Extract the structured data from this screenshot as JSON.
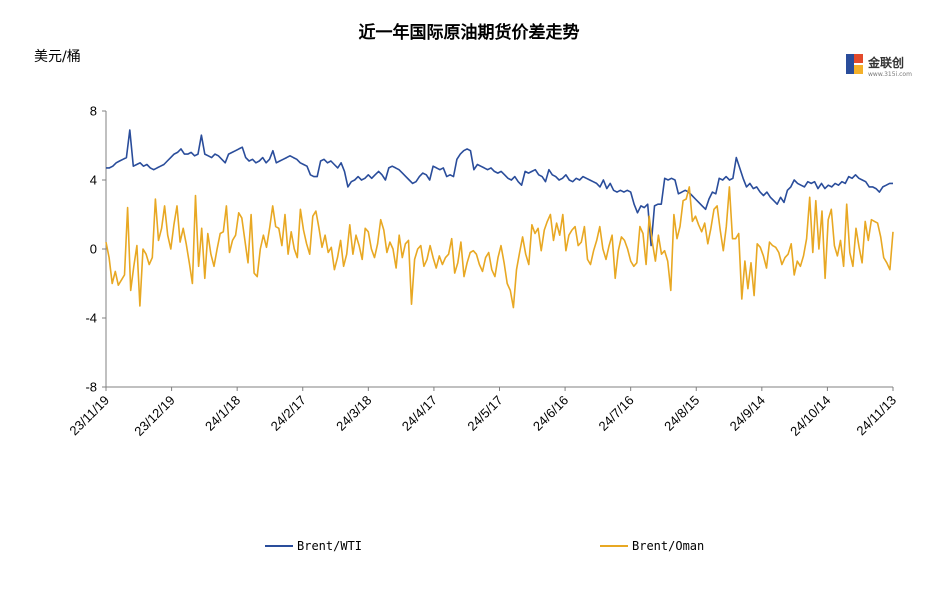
{
  "chart_data": {
    "type": "line",
    "title": "近一年国际原油期货价差走势",
    "unit_label": "美元/桶",
    "ylim": [
      -8,
      8
    ],
    "yticks": [
      8,
      4,
      0,
      -4,
      -8
    ],
    "xtick_labels": [
      "23/11/19",
      "23/12/19",
      "24/1/18",
      "24/2/17",
      "24/3/18",
      "24/4/17",
      "24/5/17",
      "24/6/16",
      "24/7/16",
      "24/8/15",
      "24/9/14",
      "24/10/14",
      "24/11/13"
    ],
    "legend_position": "bottom",
    "grid": false,
    "series": [
      {
        "name": "Brent/WTI",
        "color": "#2a4d9b",
        "values": [
          4.7,
          4.7,
          4.8,
          5.0,
          5.1,
          5.2,
          5.3,
          6.9,
          4.8,
          4.9,
          5.0,
          4.8,
          4.9,
          4.7,
          4.6,
          4.7,
          4.8,
          4.9,
          5.1,
          5.3,
          5.5,
          5.6,
          5.8,
          5.5,
          5.5,
          5.6,
          5.4,
          5.5,
          6.6,
          5.5,
          5.4,
          5.3,
          5.5,
          5.4,
          5.2,
          5.0,
          5.5,
          5.6,
          5.7,
          5.8,
          5.9,
          5.3,
          5.1,
          5.2,
          5.0,
          5.1,
          5.3,
          5.0,
          5.2,
          5.7,
          5.0,
          5.1,
          5.2,
          5.3,
          5.4,
          5.3,
          5.2,
          5.0,
          4.9,
          4.8,
          4.3,
          4.2,
          4.2,
          5.1,
          5.2,
          5.0,
          5.1,
          4.9,
          4.7,
          5.0,
          4.5,
          3.6,
          3.9,
          4.0,
          4.2,
          4.0,
          4.1,
          4.3,
          4.1,
          4.3,
          4.5,
          4.3,
          4.0,
          4.7,
          4.8,
          4.7,
          4.6,
          4.4,
          4.2,
          4.0,
          3.8,
          3.9,
          4.2,
          4.4,
          4.3,
          4.0,
          4.8,
          4.7,
          4.6,
          4.7,
          4.2,
          4.3,
          4.2,
          5.2,
          5.5,
          5.7,
          5.8,
          5.7,
          4.6,
          4.9,
          4.8,
          4.7,
          4.6,
          4.7,
          4.5,
          4.4,
          4.5,
          4.3,
          4.1,
          4.0,
          4.2,
          3.9,
          3.7,
          4.5,
          4.4,
          4.5,
          4.6,
          4.3,
          4.2,
          3.9,
          4.6,
          4.3,
          4.2,
          4.0,
          4.1,
          4.3,
          4.0,
          3.9,
          4.1,
          4.0,
          4.2,
          4.1,
          4.0,
          3.9,
          3.8,
          3.6,
          4.0,
          3.5,
          3.8,
          3.4,
          3.3,
          3.4,
          3.3,
          3.4,
          3.3,
          2.6,
          2.1,
          2.5,
          2.4,
          2.6,
          0.2,
          2.5,
          2.6,
          2.6,
          4.1,
          4.0,
          4.1,
          4.0,
          3.2,
          3.3,
          3.4,
          3.3,
          3.1,
          2.9,
          2.7,
          2.5,
          2.3,
          2.9,
          3.3,
          3.2,
          4.1,
          4.0,
          4.2,
          4.0,
          4.1,
          5.3,
          4.7,
          4.1,
          3.6,
          3.8,
          3.5,
          3.6,
          3.3,
          3.1,
          3.3,
          3.0,
          2.8,
          2.6,
          3.0,
          2.7,
          3.4,
          3.6,
          4.0,
          3.8,
          3.7,
          3.6,
          3.9,
          3.8,
          3.9,
          3.5,
          3.8,
          3.5,
          3.7,
          3.6,
          3.8,
          3.7,
          3.9,
          3.8,
          4.2,
          4.1,
          4.3,
          4.1,
          4.0,
          3.9,
          3.6,
          3.6,
          3.5,
          3.3,
          3.6,
          3.7,
          3.8,
          3.8
        ]
      },
      {
        "name": "Brent/Oman",
        "color": "#e8a823",
        "values": [
          0.4,
          -0.5,
          -2.0,
          -1.3,
          -2.1,
          -1.8,
          -1.5,
          2.4,
          -2.4,
          -1.0,
          0.2,
          -3.3,
          0.0,
          -0.3,
          -0.9,
          -0.5,
          2.9,
          0.5,
          1.2,
          2.5,
          0.8,
          0.0,
          1.4,
          2.5,
          0.4,
          1.2,
          0.3,
          -0.8,
          -2.0,
          3.1,
          -1.0,
          1.2,
          -1.7,
          0.9,
          -0.3,
          -1.0,
          0.0,
          0.9,
          1.0,
          2.5,
          -0.2,
          0.5,
          0.8,
          2.1,
          1.8,
          0.5,
          -0.8,
          2.0,
          -1.4,
          -1.6,
          0.0,
          0.8,
          0.1,
          1.2,
          2.5,
          1.3,
          1.2,
          0.2,
          2.0,
          -0.3,
          1.0,
          0.0,
          -0.5,
          2.3,
          1.1,
          0.3,
          -0.3,
          1.9,
          2.2,
          1.2,
          0.1,
          0.8,
          -0.2,
          0.1,
          -1.2,
          -0.5,
          0.5,
          -1.0,
          -0.3,
          1.4,
          -0.3,
          0.8,
          0.2,
          -0.6,
          1.2,
          1.0,
          0.0,
          -0.5,
          0.3,
          1.7,
          1.1,
          -0.2,
          0.4,
          0.0,
          -1.1,
          0.8,
          -0.5,
          0.3,
          0.5,
          -3.2,
          -0.6,
          0.0,
          0.2,
          -1.0,
          -0.6,
          0.2,
          -0.5,
          -1.1,
          -0.4,
          -0.9,
          -0.5,
          -0.3,
          0.6,
          -1.4,
          -0.8,
          0.4,
          -1.6,
          -0.8,
          -0.2,
          -0.1,
          -0.3,
          -0.9,
          -1.3,
          -0.5,
          -0.2,
          -1.2,
          -1.6,
          -0.5,
          0.2,
          -0.8,
          -2.0,
          -2.4,
          -3.4,
          -1.2,
          -0.2,
          0.7,
          -0.3,
          -0.9,
          1.4,
          0.9,
          1.2,
          -0.1,
          1.1,
          1.6,
          2.0,
          0.5,
          1.5,
          0.8,
          2.0,
          -0.1,
          0.8,
          1.1,
          1.3,
          0.2,
          0.4,
          1.3,
          -0.6,
          -0.9,
          -0.1,
          0.5,
          1.3,
          0.0,
          -0.6,
          0.2,
          0.8,
          -1.7,
          -0.1,
          0.7,
          0.5,
          0.0,
          -0.7,
          -1.0,
          -0.8,
          1.3,
          0.9,
          -0.9,
          1.9,
          0.4,
          -0.7,
          0.8,
          -0.3,
          -0.1,
          -0.7,
          -2.4,
          2.0,
          0.6,
          1.3,
          2.8,
          2.9,
          3.6,
          1.6,
          1.9,
          1.4,
          1.0,
          1.5,
          0.3,
          1.2,
          2.3,
          2.5,
          1.1,
          -0.1,
          1.3,
          3.6,
          0.6,
          0.6,
          0.9,
          -2.9,
          -0.7,
          -2.3,
          -0.8,
          -2.7,
          0.3,
          0.1,
          -0.4,
          -1.1,
          0.4,
          0.2,
          0.1,
          -0.2,
          -0.9,
          -0.5,
          -0.3,
          0.3,
          -1.5,
          -0.7,
          -1.0,
          -0.4,
          0.6,
          3.0,
          -0.2,
          2.8,
          0.0,
          2.2,
          -1.7,
          1.7,
          2.3,
          0.2,
          -0.4,
          0.5,
          -1.0,
          2.6,
          -0.2,
          -1.0,
          1.2,
          0.1,
          -0.8,
          1.6,
          0.5,
          1.7,
          1.6,
          1.5,
          0.7,
          -0.5,
          -0.8,
          -1.2,
          1.0
        ]
      }
    ]
  },
  "logo": {
    "text": "金联创",
    "sub": "www.315i.com"
  }
}
